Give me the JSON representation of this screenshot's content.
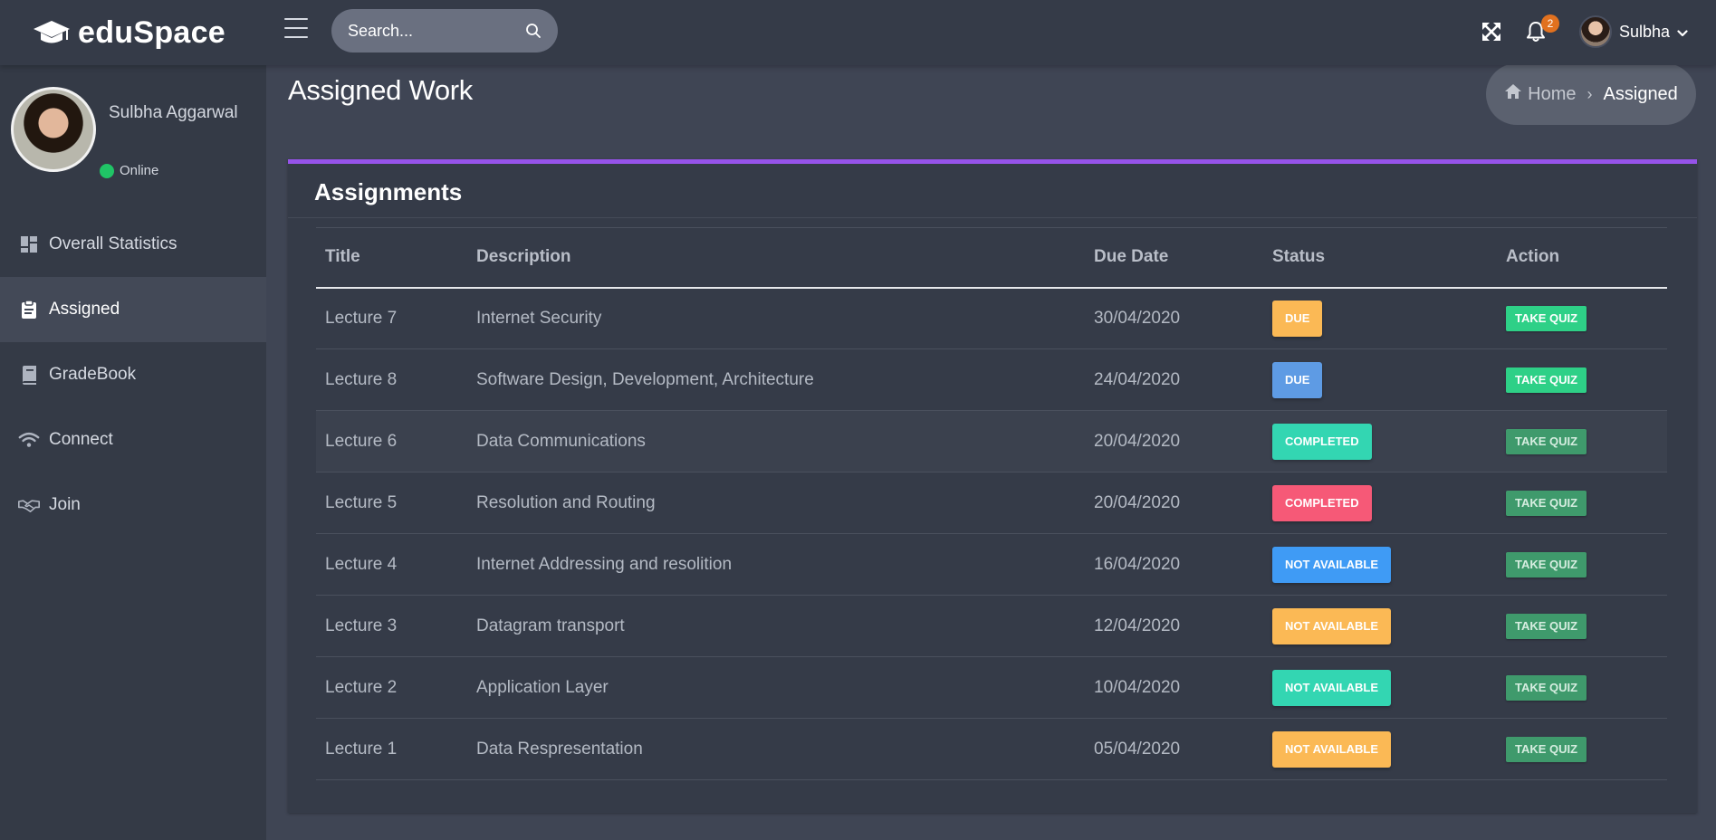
{
  "app": {
    "brand": "eduSpace"
  },
  "search": {
    "placeholder": "Search..."
  },
  "header": {
    "notifications_count": "2",
    "user_name": "Sulbha"
  },
  "sidebar": {
    "profile_name": "Sulbha Aggarwal",
    "status": "Online",
    "items": [
      {
        "label": "Overall Statistics",
        "icon": "dashboard-icon"
      },
      {
        "label": "Assigned",
        "icon": "clipboard-icon",
        "active": true
      },
      {
        "label": "GradeBook",
        "icon": "book-icon"
      },
      {
        "label": "Connect",
        "icon": "wifi-icon"
      },
      {
        "label": "Join",
        "icon": "handshake-icon"
      }
    ]
  },
  "page": {
    "title": "Assigned Work"
  },
  "breadcrumb": {
    "home": "Home",
    "current": "Assigned"
  },
  "assignments": {
    "title": "Assignments",
    "columns": [
      "Title",
      "Description",
      "Due Date",
      "Status",
      "Action"
    ],
    "rows": [
      {
        "title": "Lecture 7",
        "description": "Internet Security",
        "due": "30/04/2020",
        "status": "DUE",
        "status_color": "#fbb955",
        "action": "TAKE QUIZ",
        "action_enabled": true
      },
      {
        "title": "Lecture 8",
        "description": "Software Design, Development, Architecture",
        "due": "24/04/2020",
        "status": "DUE",
        "status_color": "#5e9be4",
        "action": "TAKE QUIZ",
        "action_enabled": true
      },
      {
        "title": "Lecture 6",
        "description": "Data Communications",
        "due": "20/04/2020",
        "status": "COMPLETED",
        "status_color": "#33d6b2",
        "action": "TAKE QUIZ",
        "action_enabled": false
      },
      {
        "title": "Lecture 5",
        "description": "Resolution and Routing",
        "due": "20/04/2020",
        "status": "COMPLETED",
        "status_color": "#f65977",
        "action": "TAKE QUIZ",
        "action_enabled": false
      },
      {
        "title": "Lecture 4",
        "description": "Internet Addressing and resolition",
        "due": "16/04/2020",
        "status": "NOT AVAILABLE",
        "status_color": "#3f9bf5",
        "action": "TAKE QUIZ",
        "action_enabled": false
      },
      {
        "title": "Lecture 3",
        "description": "Datagram transport",
        "due": "12/04/2020",
        "status": "NOT AVAILABLE",
        "status_color": "#fbb955",
        "action": "TAKE QUIZ",
        "action_enabled": false
      },
      {
        "title": "Lecture 2",
        "description": "Application Layer",
        "due": "10/04/2020",
        "status": "NOT AVAILABLE",
        "status_color": "#33d6b2",
        "action": "TAKE QUIZ",
        "action_enabled": false
      },
      {
        "title": "Lecture 1",
        "description": "Data Respresentation",
        "due": "05/04/2020",
        "status": "NOT AVAILABLE",
        "status_color": "#fbb955",
        "action": "TAKE QUIZ",
        "action_enabled": false
      }
    ]
  },
  "colors": {
    "accent": "#9653ea",
    "quiz_active": "#2ed087",
    "quiz_inactive": "#3f9a6c",
    "online": "#20c466",
    "badge": "#e1711f"
  }
}
